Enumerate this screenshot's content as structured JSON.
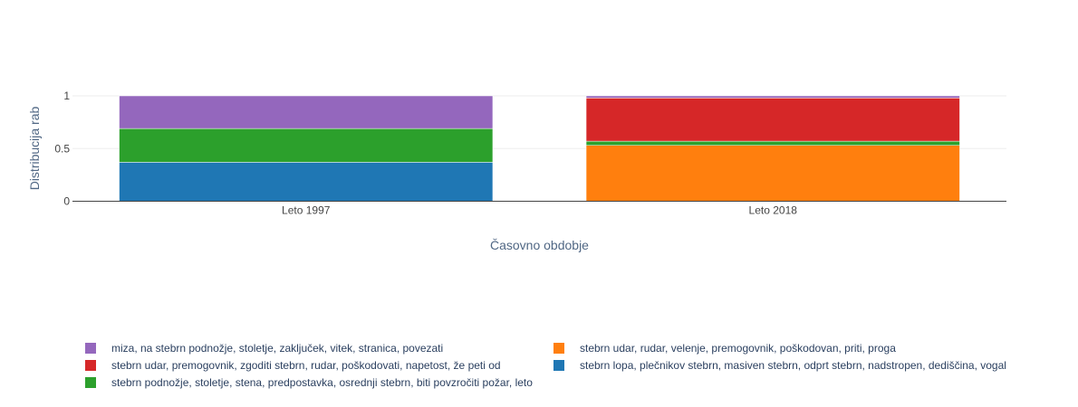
{
  "chart_data": {
    "type": "bar",
    "stacked": true,
    "title": "",
    "xlabel": "Časovno obdobje",
    "ylabel": "Distribucija rab",
    "ylim": [
      0,
      1
    ],
    "yticks": [
      {
        "value": 0,
        "label": "0"
      },
      {
        "value": 0.5,
        "label": "0.5"
      },
      {
        "value": 1,
        "label": "1"
      }
    ],
    "categories": [
      "Leto 1997",
      "Leto 2018"
    ],
    "series": [
      {
        "name": "stebrn lopa, plečnikov stebrn, masiven stebrn, odprt stebrn, nadstropen, dediščina, vogal",
        "color": "#1f77b4",
        "values": [
          0.37,
          0
        ]
      },
      {
        "name": "stebrn udar, rudar, velenje, premogovnik, poškodovan, priti, proga",
        "color": "#ff7f0e",
        "values": [
          0,
          0.53
        ]
      },
      {
        "name": "stebrn podnožje, stoletje, stena, predpostavka, osrednji stebrn, biti povzročiti požar, leto",
        "color": "#2ca02c",
        "values": [
          0.32,
          0.04
        ]
      },
      {
        "name": "stebrn udar, premogovnik, zgoditi stebrn, rudar, poškodovati, napetost, že peti od",
        "color": "#d62728",
        "values": [
          0,
          0.41
        ]
      },
      {
        "name": "miza, na stebrn podnožje, stoletje, zaključek, vitek, stranica, povezati",
        "color": "#9467bd",
        "values": [
          0.31,
          0.02
        ]
      }
    ],
    "legend_order": [
      4,
      3,
      2,
      1,
      0
    ],
    "legend_position": "bottom",
    "grid": true
  }
}
